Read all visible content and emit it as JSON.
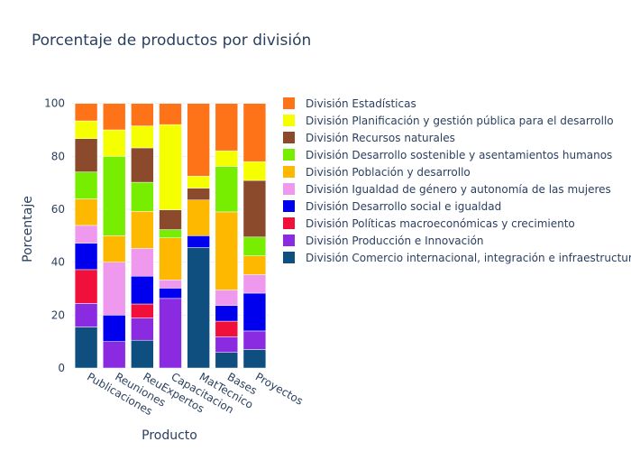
{
  "chart_data": {
    "type": "bar",
    "stacked": true,
    "title": "Porcentaje de productos por división",
    "xlabel": "Producto",
    "ylabel": "Porcentaje",
    "ylim": [
      0,
      105
    ],
    "yticks": [
      0,
      20,
      40,
      60,
      80,
      100
    ],
    "categories": [
      "Publicaciones",
      "Reuniones",
      "ReuExpertos",
      "Capacitacion",
      "MatTecnico",
      "Bases",
      "Proyectos"
    ],
    "legend_position": "right",
    "series": [
      {
        "name": "División Comercio internacional, integración e infraestructura",
        "color": "#0e4f7f",
        "values": [
          15.5,
          0,
          10.5,
          0,
          45.5,
          5.9,
          7.0
        ]
      },
      {
        "name": "División Producción e Innovación",
        "color": "#8a2be2",
        "values": [
          8.9,
          10.0,
          8.4,
          26.3,
          0,
          5.9,
          7.0
        ]
      },
      {
        "name": "División Políticas macroeconómicas y crecimiento",
        "color": "#f0103a",
        "values": [
          12.8,
          0,
          5.3,
          0,
          0,
          5.9,
          0
        ]
      },
      {
        "name": "División Desarrollo social e igualdad",
        "color": "#0000ee",
        "values": [
          10.0,
          10.0,
          10.5,
          3.9,
          4.5,
          5.9,
          14.3
        ]
      },
      {
        "name": "División Igualdad de género y autonomía de las mujeres",
        "color": "#ee99ee",
        "values": [
          6.7,
          20.0,
          10.5,
          3.1,
          0,
          5.9,
          7.0
        ]
      },
      {
        "name": "División Población y desarrollo",
        "color": "#ffb800",
        "values": [
          10.0,
          10.0,
          14.0,
          15.9,
          13.5,
          29.5,
          7.1
        ]
      },
      {
        "name": "División Desarrollo sostenible y asentamientos humanos",
        "color": "#77ee00",
        "values": [
          10.2,
          30.0,
          11.0,
          3.1,
          0,
          17.2,
          7.1
        ]
      },
      {
        "name": "División Recursos naturales",
        "color": "#8b4a2b",
        "values": [
          12.6,
          0,
          13.0,
          7.5,
          4.5,
          0,
          21.4
        ]
      },
      {
        "name": "División Planificación y gestión pública para el desarrollo",
        "color": "#f5ff00",
        "values": [
          6.7,
          10.0,
          8.3,
          32.2,
          4.5,
          5.9,
          7.1
        ]
      },
      {
        "name": "División Estadísticas",
        "color": "#ff7318",
        "values": [
          6.6,
          10.0,
          8.5,
          8.0,
          27.5,
          17.9,
          22.0
        ]
      }
    ]
  }
}
